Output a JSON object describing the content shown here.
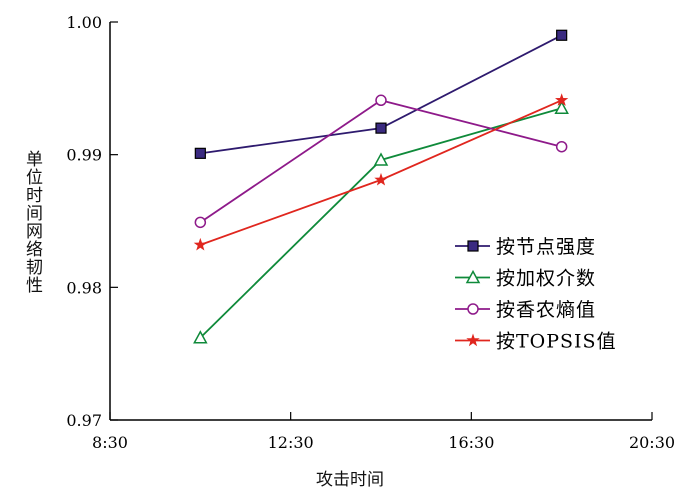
{
  "chart_data": {
    "type": "line",
    "title": "",
    "xlabel": "攻击时间",
    "ylabel": "单位时间网络韧性",
    "x_ticks": [
      "8:30",
      "12:30",
      "16:30",
      "20:30"
    ],
    "x_tick_hours": [
      8.5,
      12.5,
      16.5,
      20.5
    ],
    "xlim_hours": [
      8.5,
      20.5
    ],
    "y_ticks": [
      "0.97",
      "0.98",
      "0.99",
      "1.00"
    ],
    "ylim": [
      0.97,
      1.0
    ],
    "x_hours": [
      10.5,
      14.5,
      18.5
    ],
    "legend_position": "center-right",
    "grid": false,
    "series": [
      {
        "name": "按节点强度",
        "color": "#2e1a6e",
        "marker": "square",
        "values": [
          0.9901,
          0.992,
          0.999
        ]
      },
      {
        "name": "按加权介数",
        "color": "#0f8a3a",
        "marker": "triangle",
        "values": [
          0.9762,
          0.9896,
          0.9935
        ]
      },
      {
        "name": "按香农熵值",
        "color": "#8e1a8a",
        "marker": "circle",
        "values": [
          0.9849,
          0.9941,
          0.9906
        ]
      },
      {
        "name": "按TOPSIS值",
        "color": "#e0261e",
        "marker": "star",
        "values": [
          0.9832,
          0.9881,
          0.9941
        ]
      }
    ]
  }
}
